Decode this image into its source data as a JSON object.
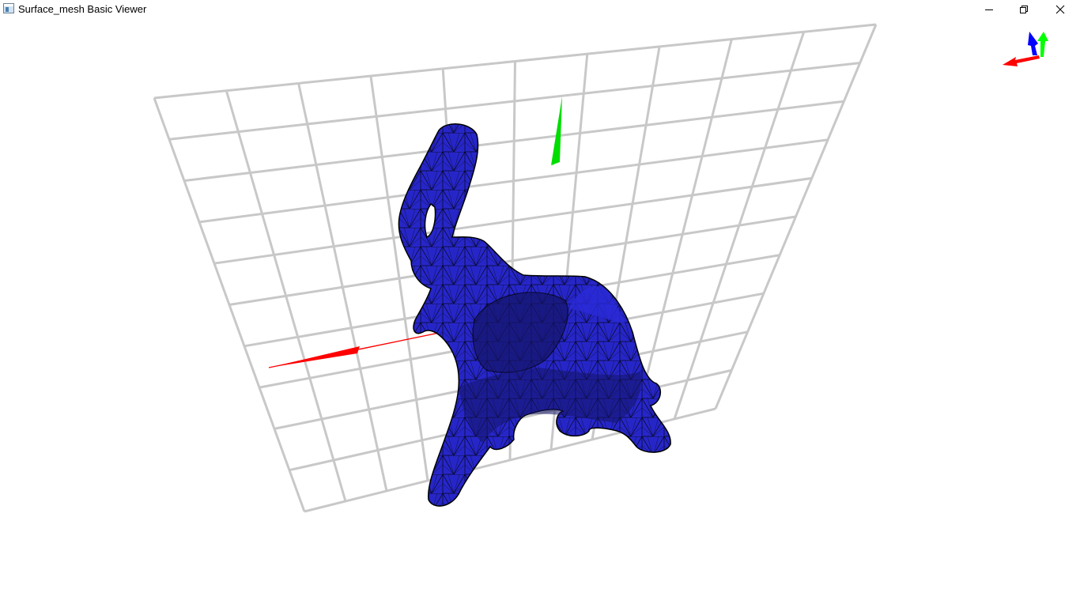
{
  "window": {
    "title": "Surface_mesh Basic Viewer",
    "icon": "app-window-icon",
    "controls": [
      "minimize-icon",
      "restore-icon",
      "close-icon"
    ]
  },
  "viewport": {
    "background": "#ffffff",
    "grid_color": "#c8c8c8",
    "mesh_fill": "#2626c8",
    "mesh_shadow": "#141466",
    "mesh_edge": "#000000",
    "axis_colors": {
      "x": "#ff0000",
      "y": "#00ff00",
      "z": "#0000ff"
    }
  }
}
